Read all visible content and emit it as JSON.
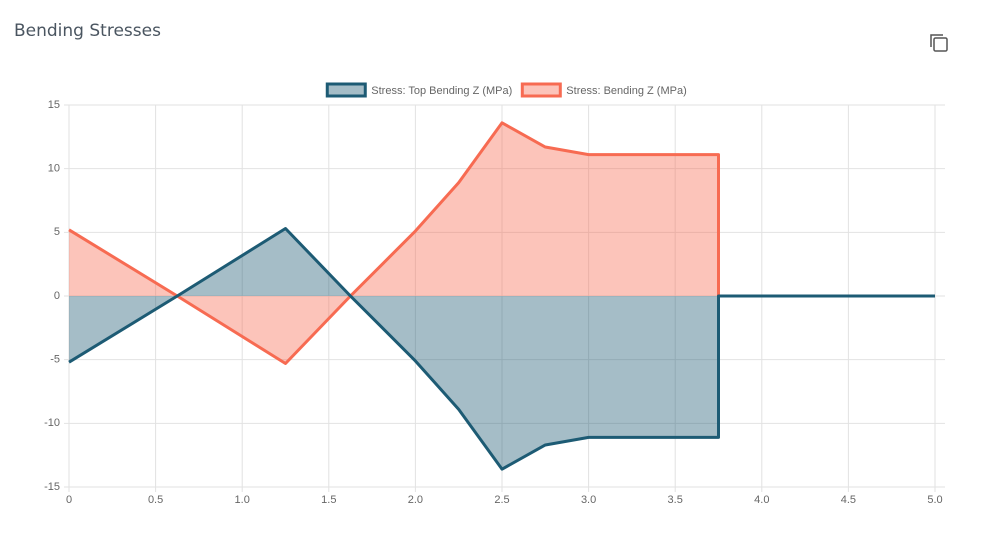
{
  "chart_data": {
    "type": "area",
    "title": "Bending Stresses",
    "x": [
      0,
      0.625,
      1.25,
      1.625,
      2.0,
      2.25,
      2.5,
      2.75,
      3.0,
      3.25,
      3.5,
      3.75,
      3.75,
      4.0,
      4.5,
      5.0
    ],
    "series": [
      {
        "name": "Stress: Top Bending Z (MPa)",
        "color": "#1d5b74",
        "values": [
          -5.2,
          0,
          5.3,
          0,
          -5.1,
          -8.9,
          -13.6,
          -11.7,
          -11.1,
          -11.1,
          -11.1,
          -11.1,
          0,
          0,
          0,
          0
        ]
      },
      {
        "name": "Stress: Bending Z (MPa)",
        "color": "#f76b52",
        "values": [
          5.2,
          0,
          -5.3,
          0,
          5.1,
          8.9,
          13.6,
          11.7,
          11.1,
          11.1,
          11.1,
          11.1,
          0,
          0,
          0,
          0
        ]
      }
    ],
    "xlim": [
      0,
      5
    ],
    "ylim": [
      -15,
      15
    ],
    "xticks": [
      0,
      0.5,
      {
        "value": 1,
        "label": "1.0"
      },
      1.5,
      {
        "value": 2,
        "label": "2.0"
      },
      2.5,
      {
        "value": 3,
        "label": "3.0"
      },
      3.5,
      {
        "value": 4,
        "label": "4.0"
      },
      4.5,
      {
        "value": 5,
        "label": "5.0"
      }
    ],
    "yticks": [
      -15,
      -10,
      -5,
      0,
      5,
      10,
      15
    ],
    "grid": true
  }
}
